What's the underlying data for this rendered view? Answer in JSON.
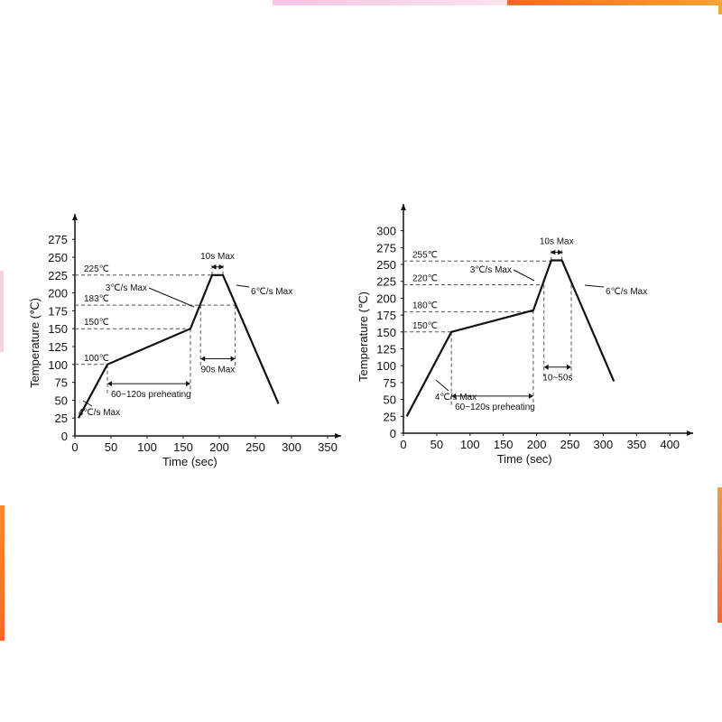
{
  "decor_colors": {
    "pink": "#f7c3e6",
    "orange": "#f56a28"
  },
  "chart_data": [
    {
      "type": "line",
      "xlabel": "Time (sec)",
      "ylabel": "Temperature (℃)",
      "xlim": [
        0,
        350
      ],
      "ylim": [
        0,
        275
      ],
      "xticks": [
        "0",
        "50",
        "100",
        "150",
        "200",
        "250",
        "300",
        "350"
      ],
      "yticks": [
        "0",
        "25",
        "50",
        "75",
        "100",
        "125",
        "150",
        "175",
        "200",
        "225",
        "250",
        "275"
      ],
      "x": [
        5,
        45,
        160,
        190,
        205,
        282
      ],
      "y": [
        25,
        100,
        150,
        225,
        225,
        45
      ],
      "levels": [
        "100℃",
        "150℃",
        "183℃",
        "225℃"
      ],
      "annotations": {
        "peak": "10s Max",
        "ramp_up": "3℃/s Max",
        "ramp_down": "6℃/s Max",
        "liquidus": "90s Max",
        "preheat": "60~120s preheating",
        "initial": "4℃/s Max"
      },
      "grid": false
    },
    {
      "type": "line",
      "xlabel": "Time (sec)",
      "ylabel": "Temperature (℃)",
      "xlim": [
        0,
        400
      ],
      "ylim": [
        0,
        300
      ],
      "xticks": [
        "0",
        "50",
        "100",
        "150",
        "200",
        "250",
        "300",
        "350",
        "400"
      ],
      "yticks": [
        "0",
        "25",
        "50",
        "75",
        "100",
        "125",
        "150",
        "175",
        "200",
        "225",
        "250",
        "275",
        "300"
      ],
      "x": [
        5,
        72,
        195,
        222,
        238,
        316
      ],
      "y": [
        25,
        150,
        182,
        256,
        256,
        77
      ],
      "levels": [
        "150℃",
        "180℃",
        "220℃",
        "255℃"
      ],
      "annotations": {
        "peak": "10s Max",
        "ramp_up": "3℃/s Max",
        "ramp_down": "6℃/s Max",
        "liquidus": "10~50s",
        "preheat": "60~120s preheating",
        "initial": "4℃/s Max"
      },
      "grid": false
    }
  ]
}
